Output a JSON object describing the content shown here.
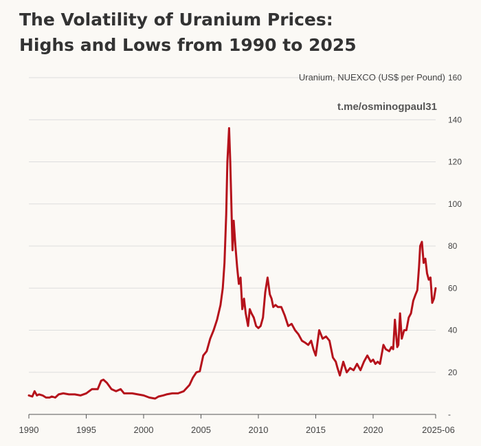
{
  "title": {
    "line1": "The Volatility of Uranium Prices:",
    "line2": "Highs and Lows from 1990 to 2025"
  },
  "chart_data": {
    "type": "line",
    "title": "The Volatility of Uranium Prices: Highs and Lows from 1990 to 2025",
    "series_label": "Uranium, NUEXCO (US$ per Pound)",
    "watermark": "t.me/osminogpaul31",
    "xlabel": "",
    "ylabel": "US$ per Pound",
    "ylim": [
      0,
      160
    ],
    "xlim": [
      1990,
      2025.45
    ],
    "y_ticks": [
      {
        "value": 160,
        "label": "160"
      },
      {
        "value": 140,
        "label": "140"
      },
      {
        "value": 120,
        "label": "120"
      },
      {
        "value": 100,
        "label": "100"
      },
      {
        "value": 80,
        "label": "80"
      },
      {
        "value": 60,
        "label": "60"
      },
      {
        "value": 40,
        "label": "40"
      },
      {
        "value": 20,
        "label": "20"
      },
      {
        "value": 0,
        "label": "-"
      }
    ],
    "x_ticks": [
      {
        "value": 1990,
        "label": "1990"
      },
      {
        "value": 1995,
        "label": "1995"
      },
      {
        "value": 2000,
        "label": "2000"
      },
      {
        "value": 2005,
        "label": "2005"
      },
      {
        "value": 2010,
        "label": "2010"
      },
      {
        "value": 2015,
        "label": "2015"
      },
      {
        "value": 2020,
        "label": "2020"
      },
      {
        "value": 2025.45,
        "label": "2025-06"
      }
    ],
    "grid": true,
    "y_axis_position": "right",
    "series": [
      {
        "name": "Uranium, NUEXCO (US$ per Pound)",
        "color": "#b5121b",
        "x": [
          1990.0,
          1990.3,
          1990.5,
          1990.7,
          1990.9,
          1991.2,
          1991.5,
          1991.8,
          1992.0,
          1992.3,
          1992.6,
          1993.0,
          1993.5,
          1994.0,
          1994.5,
          1995.0,
          1995.5,
          1995.8,
          1996.0,
          1996.3,
          1996.5,
          1996.8,
          1997.2,
          1997.6,
          1998.0,
          1998.3,
          1998.6,
          1999.0,
          1999.5,
          2000.0,
          2000.5,
          2001.0,
          2001.3,
          2001.7,
          2002.0,
          2002.5,
          2003.0,
          2003.5,
          2004.0,
          2004.3,
          2004.6,
          2004.9,
          2005.2,
          2005.5,
          2005.8,
          2006.1,
          2006.4,
          2006.7,
          2006.9,
          2007.05,
          2007.2,
          2007.3,
          2007.45,
          2007.55,
          2007.65,
          2007.75,
          2007.85,
          2008.0,
          2008.15,
          2008.3,
          2008.45,
          2008.6,
          2008.75,
          2008.9,
          2009.1,
          2009.25,
          2009.4,
          2009.6,
          2009.8,
          2010.0,
          2010.2,
          2010.4,
          2010.6,
          2010.8,
          2011.0,
          2011.15,
          2011.3,
          2011.5,
          2011.7,
          2012.0,
          2012.3,
          2012.6,
          2012.9,
          2013.2,
          2013.5,
          2013.8,
          2014.1,
          2014.35,
          2014.6,
          2014.8,
          2015.0,
          2015.3,
          2015.6,
          2015.9,
          2016.2,
          2016.5,
          2016.75,
          2016.9,
          2017.1,
          2017.4,
          2017.7,
          2018.0,
          2018.3,
          2018.6,
          2018.9,
          2019.2,
          2019.5,
          2019.8,
          2020.0,
          2020.2,
          2020.4,
          2020.6,
          2020.9,
          2021.1,
          2021.4,
          2021.6,
          2021.75,
          2021.9,
          2022.1,
          2022.2,
          2022.35,
          2022.5,
          2022.7,
          2022.9,
          2023.1,
          2023.3,
          2023.5,
          2023.7,
          2023.85,
          2024.0,
          2024.1,
          2024.25,
          2024.4,
          2024.55,
          2024.7,
          2024.85,
          2025.0,
          2025.15,
          2025.3,
          2025.45
        ],
        "values": [
          9,
          8.5,
          11,
          9,
          9.5,
          9,
          8,
          8,
          8.5,
          8,
          9.5,
          10,
          9.5,
          9.5,
          9,
          10,
          12,
          12,
          12,
          16,
          16.5,
          15,
          12,
          11,
          12,
          10,
          10,
          10,
          9.5,
          9,
          8,
          7.5,
          8.5,
          9,
          9.5,
          10,
          10,
          11,
          14,
          17.5,
          20,
          20.5,
          28,
          30,
          36,
          40,
          45,
          52,
          60,
          72,
          95,
          120,
          136,
          120,
          100,
          78,
          92,
          80,
          70,
          62,
          65,
          50,
          55,
          48,
          42,
          50,
          48,
          46,
          42,
          41,
          42,
          46,
          58,
          65,
          57,
          55,
          51,
          52,
          51,
          51,
          47,
          42,
          43,
          40,
          38,
          35,
          34,
          33,
          35,
          31,
          28,
          40,
          36,
          37,
          35,
          27,
          25,
          22,
          18.5,
          25,
          20,
          22,
          21,
          24,
          21,
          25,
          28,
          25,
          26,
          24,
          25,
          24,
          33,
          31,
          30,
          32,
          31,
          45,
          32,
          33,
          48,
          36,
          40,
          40,
          46,
          48,
          54,
          57,
          59,
          70,
          80,
          82,
          72,
          74,
          67,
          64,
          65,
          53,
          55,
          60
        ]
      }
    ]
  }
}
